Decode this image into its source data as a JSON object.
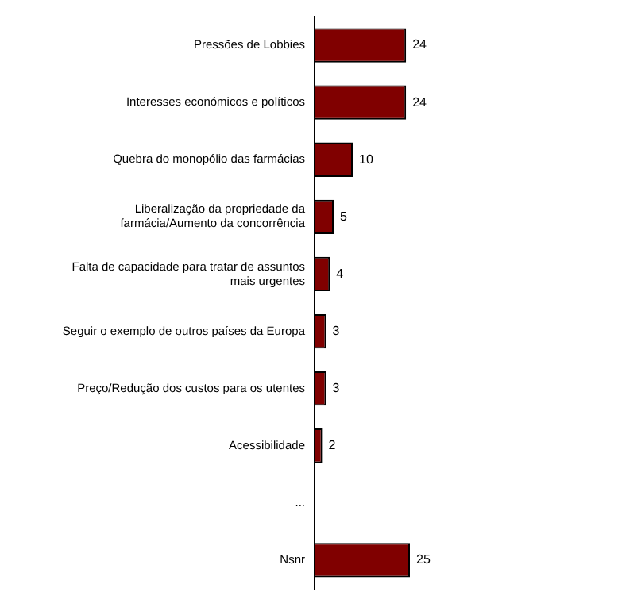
{
  "chart_data": {
    "type": "bar",
    "orientation": "horizontal",
    "categories": [
      "Pressões de Lobbies",
      "Interesses económicos e políticos",
      "Quebra do monopólio das farmácias",
      "Liberalização da propriedade da farmácia/Aumento da concorrência",
      "Falta de capacidade para tratar de assuntos mais urgentes",
      "Seguir o exemplo de outros países da Europa",
      "Preço/Redução dos custos para os utentes",
      "Acessibilidade",
      "...",
      "Nsnr"
    ],
    "values": [
      24,
      24,
      10,
      5,
      4,
      3,
      3,
      2,
      null,
      25
    ],
    "color": "#800000",
    "data_labels": true,
    "grid": false,
    "legend": false
  }
}
